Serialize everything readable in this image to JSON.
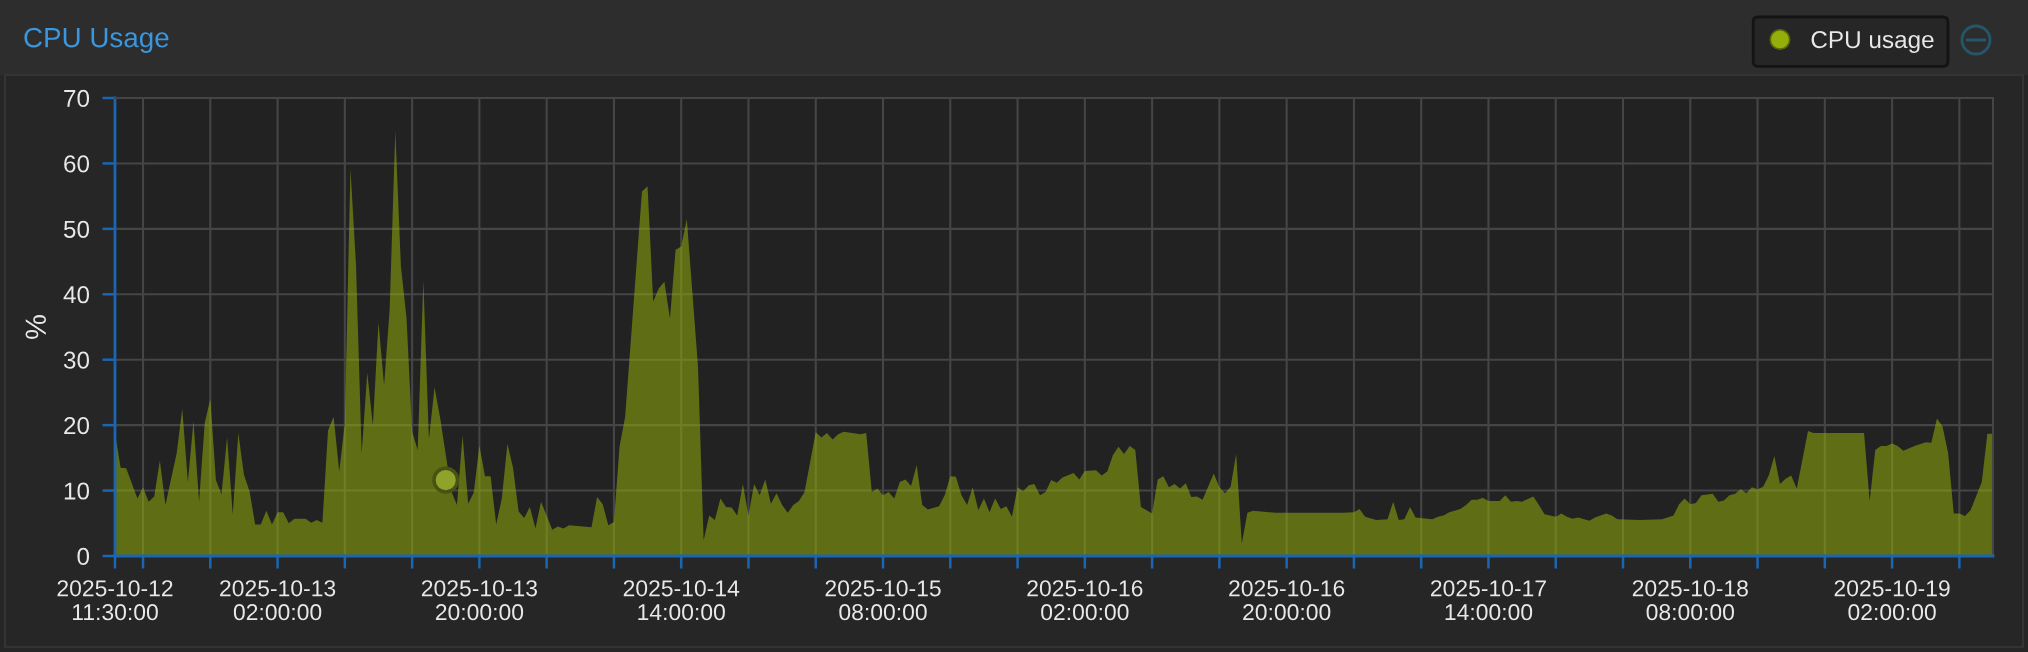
{
  "chart_data": {
    "type": "area",
    "title": "CPU Usage",
    "ylabel": "%",
    "xlim": [
      "2025-10-12T11:30",
      "2025-10-19T11:00"
    ],
    "ylim": [
      0,
      70
    ],
    "yticks": [
      0,
      10,
      20,
      30,
      40,
      50,
      60,
      70
    ],
    "xticks": [
      {
        "value": "2025-10-12T11:30",
        "label": "2025-10-12\n11:30:00"
      },
      {
        "value": "2025-10-12T14:00",
        "label": null
      },
      {
        "value": "2025-10-12T20:00",
        "label": null
      },
      {
        "value": "2025-10-13T02:00",
        "label": "2025-10-13\n02:00:00"
      },
      {
        "value": "2025-10-13T08:00",
        "label": null
      },
      {
        "value": "2025-10-13T14:00",
        "label": null
      },
      {
        "value": "2025-10-13T20:00",
        "label": "2025-10-13\n20:00:00"
      },
      {
        "value": "2025-10-14T02:00",
        "label": null
      },
      {
        "value": "2025-10-14T08:00",
        "label": null
      },
      {
        "value": "2025-10-14T14:00",
        "label": "2025-10-14\n14:00:00"
      },
      {
        "value": "2025-10-14T20:00",
        "label": null
      },
      {
        "value": "2025-10-15T02:00",
        "label": null
      },
      {
        "value": "2025-10-15T08:00",
        "label": "2025-10-15\n08:00:00"
      },
      {
        "value": "2025-10-15T14:00",
        "label": null
      },
      {
        "value": "2025-10-15T20:00",
        "label": null
      },
      {
        "value": "2025-10-16T02:00",
        "label": "2025-10-16\n02:00:00"
      },
      {
        "value": "2025-10-16T08:00",
        "label": null
      },
      {
        "value": "2025-10-16T14:00",
        "label": null
      },
      {
        "value": "2025-10-16T20:00",
        "label": "2025-10-16\n20:00:00"
      },
      {
        "value": "2025-10-17T02:00",
        "label": null
      },
      {
        "value": "2025-10-17T08:00",
        "label": null
      },
      {
        "value": "2025-10-17T14:00",
        "label": "2025-10-17\n14:00:00"
      },
      {
        "value": "2025-10-17T20:00",
        "label": null
      },
      {
        "value": "2025-10-18T02:00",
        "label": null
      },
      {
        "value": "2025-10-18T08:00",
        "label": "2025-10-18\n08:00:00"
      },
      {
        "value": "2025-10-18T14:00",
        "label": null
      },
      {
        "value": "2025-10-18T20:00",
        "label": null
      },
      {
        "value": "2025-10-19T02:00",
        "label": "2025-10-19\n02:00:00"
      },
      {
        "value": "2025-10-19T08:00",
        "label": null
      }
    ],
    "grid": true,
    "legend": "top right",
    "series": [
      {
        "name": "CPU usage",
        "color": "#94ae0a",
        "x": [
          "2025-10-12T11:30",
          "2025-10-12T12:00",
          "2025-10-12T12:30",
          "2025-10-12T13:30",
          "2025-10-12T14:00",
          "2025-10-12T14:30",
          "2025-10-12T15:00",
          "2025-10-12T15:30",
          "2025-10-12T16:00",
          "2025-10-12T17:00",
          "2025-10-12T17:30",
          "2025-10-12T18:00",
          "2025-10-12T18:30",
          "2025-10-12T19:00",
          "2025-10-12T19:30",
          "2025-10-12T20:00",
          "2025-10-12T20:30",
          "2025-10-12T21:00",
          "2025-10-12T21:30",
          "2025-10-12T22:00",
          "2025-10-12T22:30",
          "2025-10-12T23:00",
          "2025-10-12T23:30",
          "2025-10-13T00:00",
          "2025-10-13T00:30",
          "2025-10-13T01:00",
          "2025-10-13T01:30",
          "2025-10-13T02:00",
          "2025-10-13T02:30",
          "2025-10-13T03:00",
          "2025-10-13T03:30",
          "2025-10-13T04:30",
          "2025-10-13T05:00",
          "2025-10-13T05:30",
          "2025-10-13T06:00",
          "2025-10-13T06:30",
          "2025-10-13T07:00",
          "2025-10-13T07:30",
          "2025-10-13T08:00",
          "2025-10-13T08:30",
          "2025-10-13T09:00",
          "2025-10-13T09:30",
          "2025-10-13T10:00",
          "2025-10-13T10:30",
          "2025-10-13T11:00",
          "2025-10-13T11:30",
          "2025-10-13T12:00",
          "2025-10-13T12:30",
          "2025-10-13T13:00",
          "2025-10-13T13:30",
          "2025-10-13T14:00",
          "2025-10-13T14:30",
          "2025-10-13T15:00",
          "2025-10-13T15:30",
          "2025-10-13T16:00",
          "2025-10-13T16:30",
          "2025-10-13T17:30",
          "2025-10-13T18:00",
          "2025-10-13T18:30",
          "2025-10-13T19:00",
          "2025-10-13T19:30",
          "2025-10-13T20:00",
          "2025-10-13T20:30",
          "2025-10-13T21:00",
          "2025-10-13T21:30",
          "2025-10-13T22:00",
          "2025-10-13T22:30",
          "2025-10-13T23:00",
          "2025-10-13T23:30",
          "2025-10-14T00:00",
          "2025-10-14T00:30",
          "2025-10-14T01:00",
          "2025-10-14T01:30",
          "2025-10-14T02:30",
          "2025-10-14T03:00",
          "2025-10-14T03:30",
          "2025-10-14T04:00",
          "2025-10-14T06:00",
          "2025-10-14T06:30",
          "2025-10-14T07:00",
          "2025-10-14T07:30",
          "2025-10-14T08:00",
          "2025-10-14T08:30",
          "2025-10-14T09:00",
          "2025-10-14T10:30",
          "2025-10-14T11:00",
          "2025-10-14T11:30",
          "2025-10-14T12:00",
          "2025-10-14T12:30",
          "2025-10-14T13:00",
          "2025-10-14T13:30",
          "2025-10-14T14:00",
          "2025-10-14T14:30",
          "2025-10-14T15:30",
          "2025-10-14T16:00",
          "2025-10-14T16:30",
          "2025-10-14T17:00",
          "2025-10-14T17:30",
          "2025-10-14T18:00",
          "2025-10-14T18:30",
          "2025-10-14T19:00",
          "2025-10-14T19:30",
          "2025-10-14T20:00",
          "2025-10-14T20:30",
          "2025-10-14T21:00",
          "2025-10-14T21:30",
          "2025-10-14T22:00",
          "2025-10-14T22:30",
          "2025-10-14T23:00",
          "2025-10-14T23:30",
          "2025-10-15T00:00",
          "2025-10-15T00:30",
          "2025-10-15T01:00",
          "2025-10-15T02:00",
          "2025-10-15T02:30",
          "2025-10-15T03:00",
          "2025-10-15T03:30",
          "2025-10-15T04:00",
          "2025-10-15T04:30",
          "2025-10-15T06:00",
          "2025-10-15T06:30",
          "2025-10-15T07:00",
          "2025-10-15T07:30",
          "2025-10-15T08:00",
          "2025-10-15T08:30",
          "2025-10-15T09:00",
          "2025-10-15T09:30",
          "2025-10-15T10:00",
          "2025-10-15T10:30",
          "2025-10-15T11:00",
          "2025-10-15T11:30",
          "2025-10-15T12:00",
          "2025-10-15T13:00",
          "2025-10-15T13:30",
          "2025-10-15T14:00",
          "2025-10-15T14:30",
          "2025-10-15T15:00",
          "2025-10-15T15:30",
          "2025-10-15T16:00",
          "2025-10-15T16:30",
          "2025-10-15T17:00",
          "2025-10-15T17:30",
          "2025-10-15T18:00",
          "2025-10-15T18:30",
          "2025-10-15T19:00",
          "2025-10-15T19:30",
          "2025-10-15T20:00",
          "2025-10-15T20:30",
          "2025-10-15T21:00",
          "2025-10-15T21:30",
          "2025-10-15T22:00",
          "2025-10-15T22:30",
          "2025-10-15T23:00",
          "2025-10-15T23:30",
          "2025-10-16T00:00",
          "2025-10-16T01:00",
          "2025-10-16T01:30",
          "2025-10-16T02:00",
          "2025-10-16T03:00",
          "2025-10-16T03:30",
          "2025-10-16T04:00",
          "2025-10-16T04:30",
          "2025-10-16T05:00",
          "2025-10-16T05:30",
          "2025-10-16T06:00",
          "2025-10-16T06:30",
          "2025-10-16T07:00",
          "2025-10-16T08:00",
          "2025-10-16T08:30",
          "2025-10-16T09:00",
          "2025-10-16T09:30",
          "2025-10-16T10:00",
          "2025-10-16T10:30",
          "2025-10-16T11:00",
          "2025-10-16T11:30",
          "2025-10-16T12:00",
          "2025-10-16T12:30",
          "2025-10-16T13:30",
          "2025-10-16T14:00",
          "2025-10-16T14:30",
          "2025-10-16T15:00",
          "2025-10-16T15:30",
          "2025-10-16T16:00",
          "2025-10-16T16:30",
          "2025-10-16T17:00",
          "2025-10-16T19:00",
          "2025-10-16T22:00",
          "2025-10-17T01:00",
          "2025-10-17T02:00",
          "2025-10-17T02:30",
          "2025-10-17T03:00",
          "2025-10-17T04:00",
          "2025-10-17T05:00",
          "2025-10-17T05:30",
          "2025-10-17T06:00",
          "2025-10-17T06:30",
          "2025-10-17T07:00",
          "2025-10-17T07:30",
          "2025-10-17T09:00",
          "2025-10-17T09:30",
          "2025-10-17T10:00",
          "2025-10-17T10:30",
          "2025-10-17T11:30",
          "2025-10-17T12:00",
          "2025-10-17T12:30",
          "2025-10-17T13:00",
          "2025-10-17T13:30",
          "2025-10-17T14:00",
          "2025-10-17T15:00",
          "2025-10-17T15:30",
          "2025-10-17T16:00",
          "2025-10-17T16:30",
          "2025-10-17T17:00",
          "2025-10-17T18:00",
          "2025-10-17T18:30",
          "2025-10-17T19:00",
          "2025-10-17T20:00",
          "2025-10-17T20:30",
          "2025-10-17T21:00",
          "2025-10-17T21:30",
          "2025-10-17T22:00",
          "2025-10-17T23:00",
          "2025-10-17T23:30",
          "2025-10-18T00:30",
          "2025-10-18T01:00",
          "2025-10-18T01:30",
          "2025-10-18T03:30",
          "2025-10-18T05:30",
          "2025-10-18T06:30",
          "2025-10-18T07:00",
          "2025-10-18T07:30",
          "2025-10-18T08:00",
          "2025-10-18T08:30",
          "2025-10-18T09:00",
          "2025-10-18T10:00",
          "2025-10-18T10:30",
          "2025-10-18T11:00",
          "2025-10-18T11:30",
          "2025-10-18T12:00",
          "2025-10-18T12:30",
          "2025-10-18T13:00",
          "2025-10-18T13:30",
          "2025-10-18T14:00",
          "2025-10-18T14:30",
          "2025-10-18T15:00",
          "2025-10-18T15:30",
          "2025-10-18T16:00",
          "2025-10-18T16:30",
          "2025-10-18T17:00",
          "2025-10-18T17:30",
          "2025-10-18T18:30",
          "2025-10-18T19:00",
          "2025-10-18T21:30",
          "2025-10-18T23:30",
          "2025-10-19T00:00",
          "2025-10-19T00:30",
          "2025-10-19T01:00",
          "2025-10-19T01:30",
          "2025-10-19T02:00",
          "2025-10-19T02:30",
          "2025-10-19T03:00",
          "2025-10-19T04:00",
          "2025-10-19T05:00",
          "2025-10-19T05:30",
          "2025-10-19T06:00",
          "2025-10-19T06:30",
          "2025-10-19T07:00",
          "2025-10-19T07:30",
          "2025-10-19T08:00",
          "2025-10-19T08:30",
          "2025-10-19T09:00",
          "2025-10-19T10:00",
          "2025-10-19T10:30",
          "2025-10-19T11:00"
        ],
        "values": [
          18.8,
          13.5,
          13.4,
          8.8,
          10.5,
          8.3,
          9.1,
          14.6,
          7.8,
          15.7,
          22.5,
          11.3,
          20.6,
          8.3,
          20.3,
          24.0,
          11.6,
          9.4,
          18.2,
          6.4,
          18.8,
          12.4,
          9.9,
          4.8,
          4.8,
          6.9,
          4.8,
          6.7,
          6.7,
          5.0,
          5.7,
          5.7,
          5.1,
          5.5,
          5.1,
          19.2,
          21.3,
          12.9,
          20.3,
          59.2,
          44.3,
          15.7,
          28.0,
          20.0,
          35.7,
          26.1,
          37.8,
          65.0,
          44.3,
          36.4,
          19.0,
          16.2,
          42.1,
          17.9,
          25.8,
          21.1,
          9.9,
          7.8,
          18.4,
          8.0,
          9.7,
          16.9,
          12.2,
          12.2,
          4.8,
          8.8,
          17.1,
          13.5,
          6.8,
          5.8,
          7.5,
          4.2,
          8.3,
          4.0,
          4.5,
          4.2,
          4.7,
          4.4,
          9.0,
          7.9,
          4.7,
          5.2,
          16.7,
          21.3,
          55.7,
          56.5,
          38.9,
          40.9,
          41.9,
          36.3,
          46.8,
          47.3,
          51.5,
          28.9,
          2.4,
          6.2,
          5.5,
          8.8,
          7.5,
          7.4,
          6.2,
          11.0,
          6.2,
          11.0,
          9.3,
          11.7,
          8.0,
          9.6,
          7.8,
          6.6,
          7.8,
          8.4,
          9.8,
          18.9,
          18.1,
          18.8,
          17.8,
          18.6,
          19.0,
          18.6,
          18.8,
          9.8,
          10.3,
          9.3,
          9.8,
          8.8,
          11.3,
          11.7,
          10.7,
          13.9,
          7.8,
          7.1,
          7.6,
          9.3,
          12.2,
          12.1,
          9.3,
          7.8,
          10.5,
          7.0,
          8.8,
          6.7,
          8.8,
          7.2,
          7.6,
          6.0,
          10.5,
          9.9,
          10.8,
          11.0,
          9.3,
          9.8,
          11.6,
          11.2,
          12.0,
          12.7,
          11.7,
          13.0,
          13.1,
          12.3,
          12.9,
          15.4,
          16.7,
          15.6,
          16.8,
          16.2,
          7.5,
          6.5,
          11.7,
          12.2,
          10.5,
          11.0,
          10.3,
          11.1,
          9.0,
          9.1,
          8.6,
          12.6,
          10.5,
          9.6,
          10.6,
          15.6,
          1.9,
          6.6,
          6.9,
          6.6,
          6.6,
          6.6,
          6.7,
          7.2,
          6.0,
          5.5,
          5.6,
          8.3,
          5.5,
          5.6,
          7.5,
          5.9,
          5.6,
          6.0,
          6.2,
          6.7,
          7.2,
          7.8,
          8.6,
          8.6,
          8.9,
          8.4,
          8.4,
          9.3,
          8.3,
          8.4,
          8.3,
          9.1,
          7.8,
          6.4,
          6.0,
          6.5,
          6.0,
          5.7,
          5.9,
          5.4,
          5.9,
          6.5,
          6.2,
          5.6,
          5.5,
          5.6,
          6.2,
          7.9,
          8.8,
          7.9,
          8.1,
          9.3,
          9.5,
          8.3,
          8.5,
          9.3,
          9.5,
          10.2,
          9.6,
          10.5,
          10.2,
          10.6,
          12.3,
          15.3,
          11.0,
          11.8,
          12.3,
          10.3,
          19.1,
          18.8,
          18.8,
          18.8,
          8.4,
          16.2,
          16.8,
          16.8,
          17.2,
          16.8,
          16.1,
          16.8,
          17.4,
          17.3,
          21.0,
          19.8,
          15.7,
          6.5,
          6.5,
          6.1,
          7.0,
          11.3,
          18.7,
          18.7
        ]
      },
      {
        "type": "scatter",
        "color": "#8fa32a",
        "marker": "circle",
        "x": [
          "2025-10-13T17:00"
        ],
        "values": [
          11.6
        ]
      }
    ]
  }
}
